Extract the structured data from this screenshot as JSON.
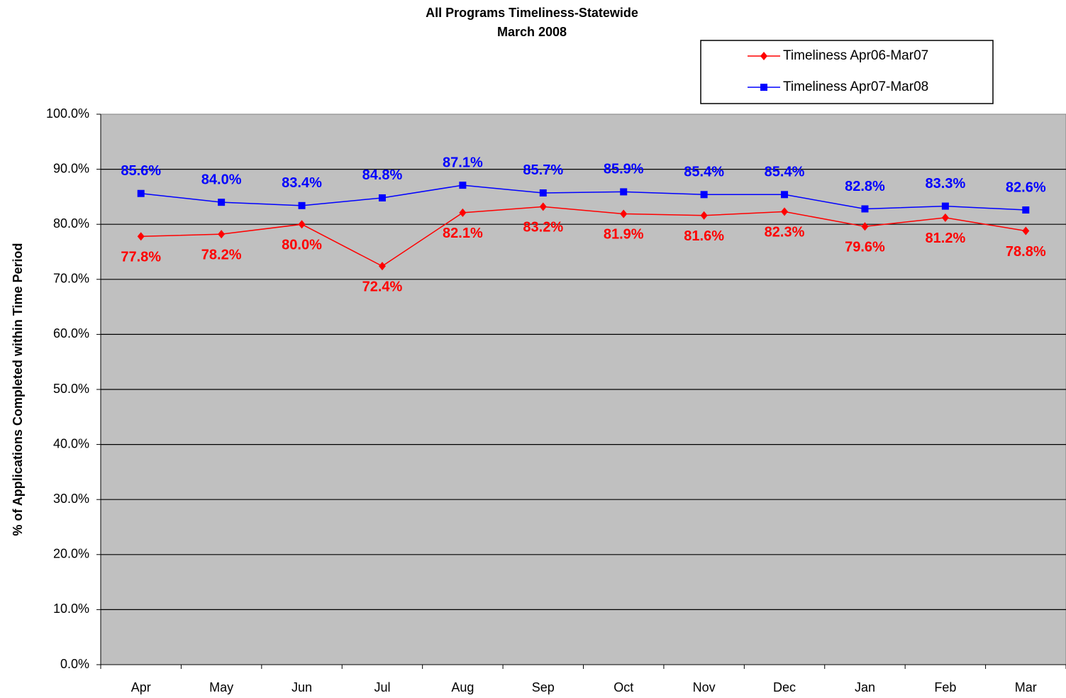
{
  "chart_data": {
    "type": "line",
    "title": "All Programs Timeliness-Statewide",
    "subtitle": "March 2008",
    "y_label": "% of Applications Completed within Time Period",
    "categories": [
      "Apr",
      "May",
      "Jun",
      "Jul",
      "Aug",
      "Sep",
      "Oct",
      "Nov",
      "Dec",
      "Jan",
      "Feb",
      "Mar"
    ],
    "series": [
      {
        "name": "Timeliness Apr06-Mar07",
        "color": "#ff0000",
        "marker": "diamond",
        "values": [
          77.8,
          78.2,
          80.0,
          72.4,
          82.1,
          83.2,
          81.9,
          81.6,
          82.3,
          79.6,
          81.2,
          78.8
        ],
        "value_labels": [
          "77.8%",
          "78.2%",
          "80.0%",
          "72.4%",
          "82.1%",
          "83.2%",
          "81.9%",
          "81.6%",
          "82.3%",
          "79.6%",
          "81.2%",
          "78.8%"
        ]
      },
      {
        "name": "Timeliness Apr07-Mar08",
        "color": "#0000ff",
        "marker": "square",
        "values": [
          85.6,
          84.0,
          83.4,
          84.8,
          87.1,
          85.7,
          85.9,
          85.4,
          85.4,
          82.8,
          83.3,
          82.6
        ],
        "value_labels": [
          "85.6%",
          "84.0%",
          "83.4%",
          "84.8%",
          "87.1%",
          "85.7%",
          "85.9%",
          "85.4%",
          "85.4%",
          "82.8%",
          "83.3%",
          "82.6%"
        ]
      }
    ],
    "ylim": [
      0,
      100
    ],
    "yticks": [
      {
        "value": 0,
        "label": "0.0%"
      },
      {
        "value": 10,
        "label": "10.0%"
      },
      {
        "value": 20,
        "label": "20.0%"
      },
      {
        "value": 30,
        "label": "30.0%"
      },
      {
        "value": 40,
        "label": "40.0%"
      },
      {
        "value": 50,
        "label": "50.0%"
      },
      {
        "value": 60,
        "label": "60.0%"
      },
      {
        "value": 70,
        "label": "70.0%"
      },
      {
        "value": 80,
        "label": "80.0%"
      },
      {
        "value": 90,
        "label": "90.0%"
      },
      {
        "value": 100,
        "label": "100.0%"
      }
    ],
    "grid": true,
    "legend": "top-right"
  }
}
